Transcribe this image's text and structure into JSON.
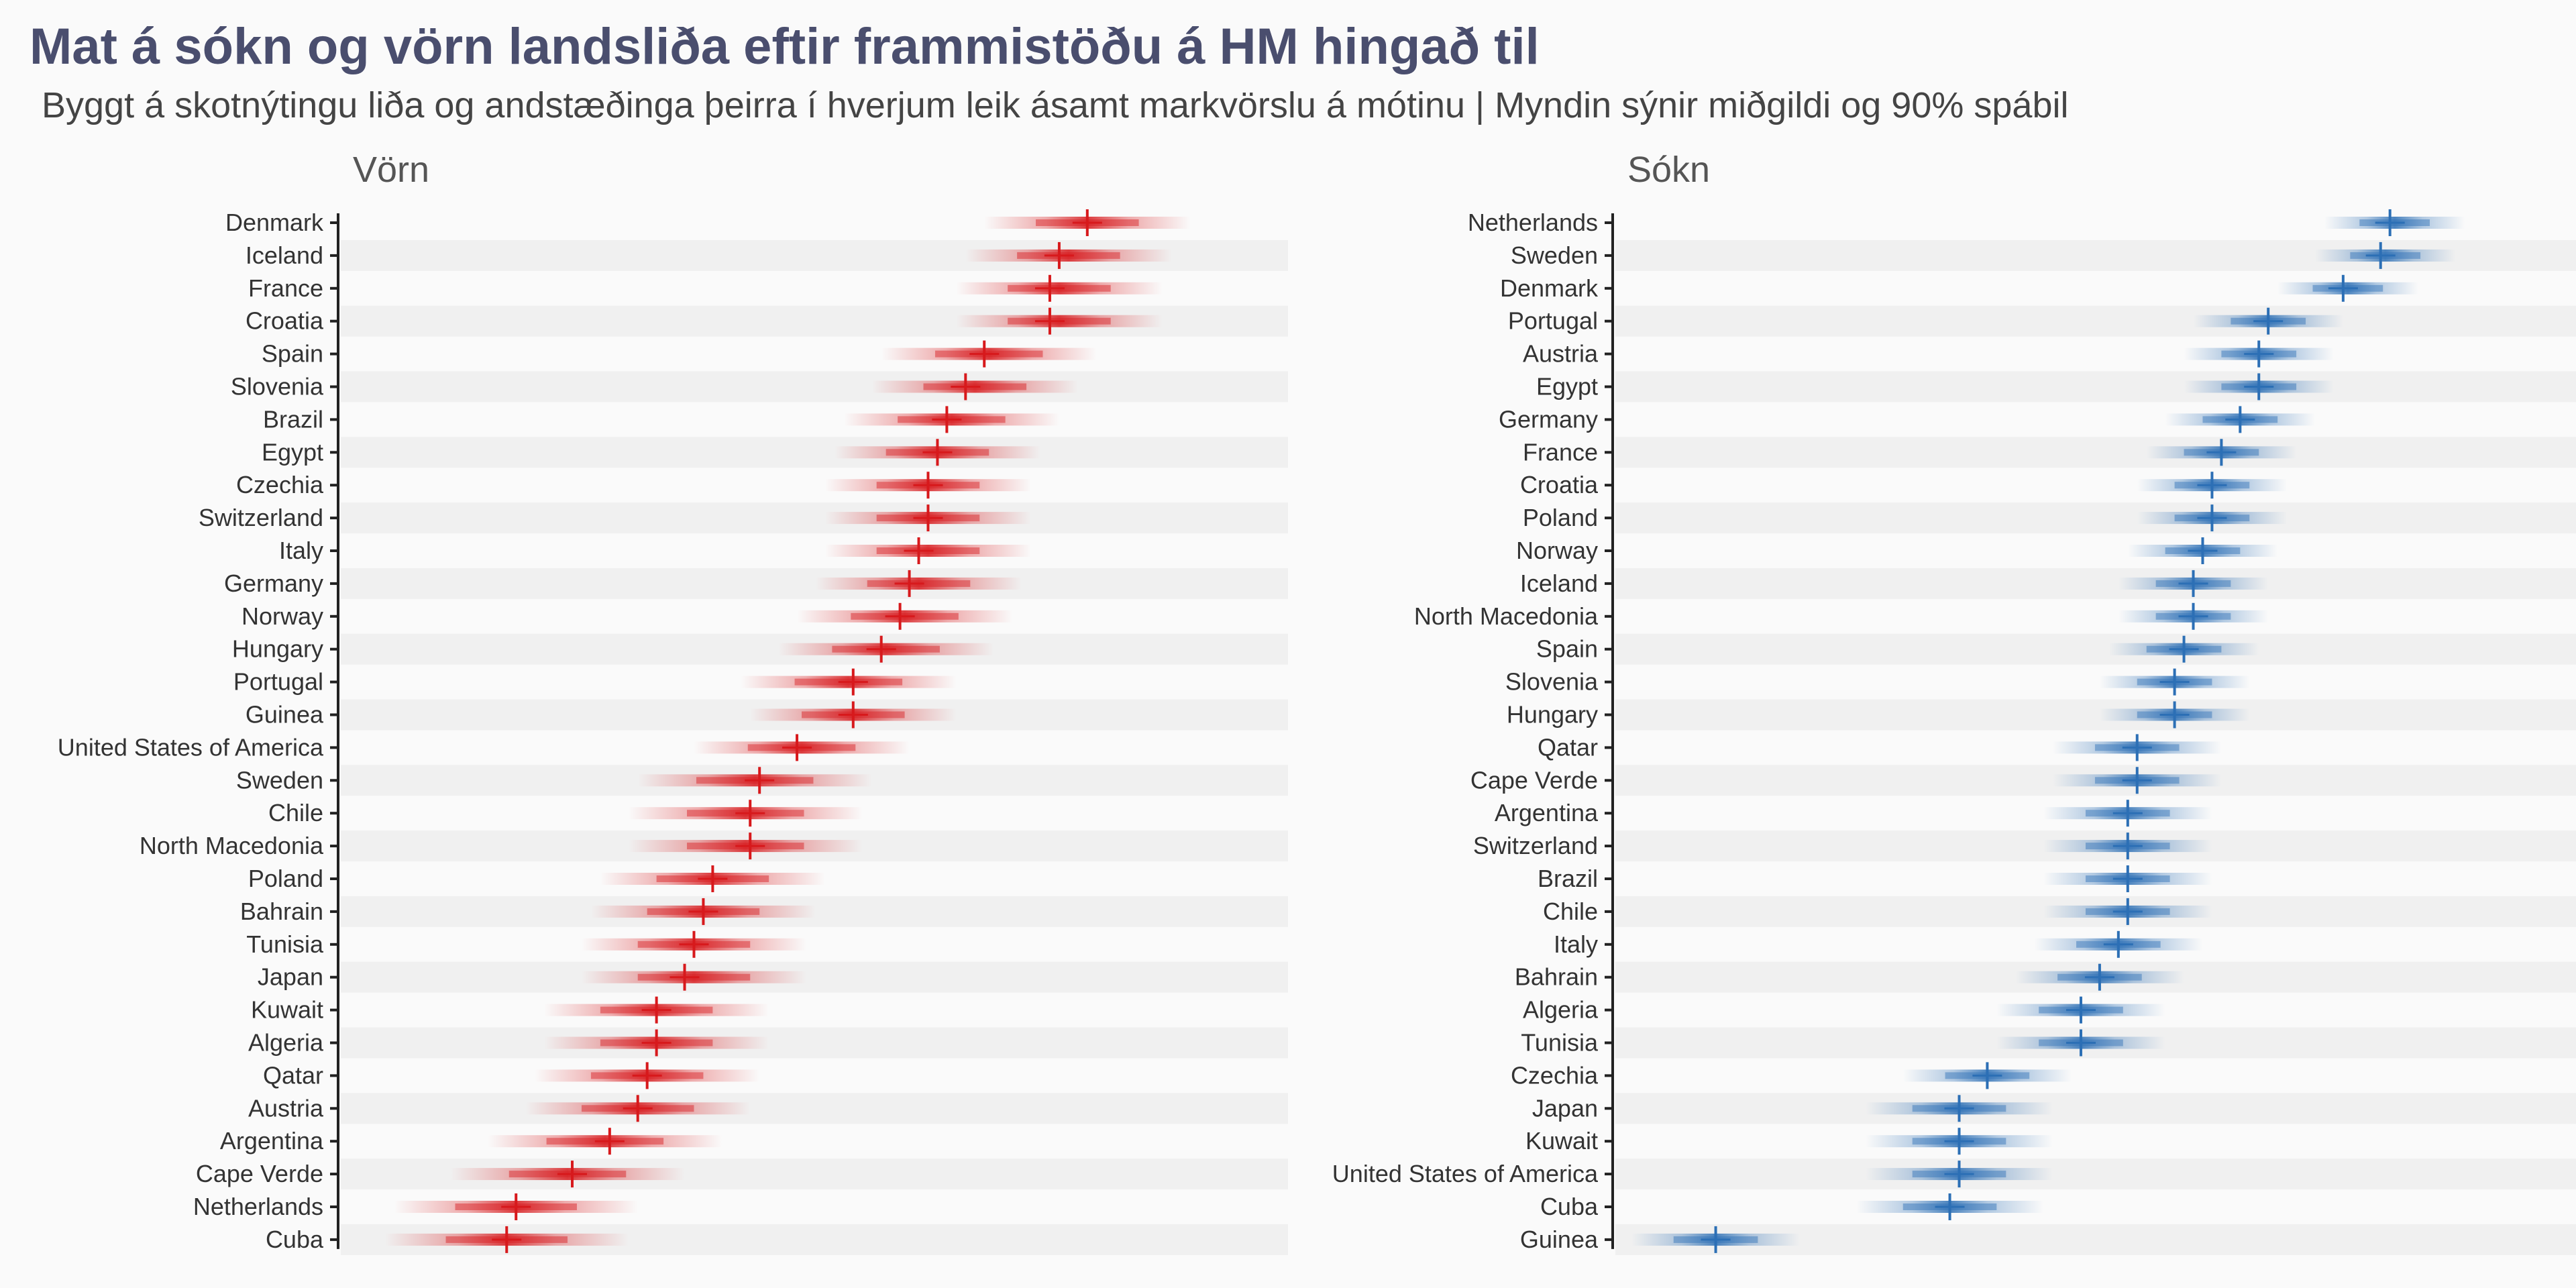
{
  "title": "Mat á sókn og vörn landsliða eftir frammistöðu á HM hingað til",
  "subtitle": "Byggt á skotnýtingu liða og andstæðinga þeirra í hverjum leik ásamt markvörslu á mótinu | Myndin sýnir miðgildi og 90% spábil",
  "colors": {
    "defense": "#d7191c",
    "attack": "#2c6fb5",
    "band": "#f0f0f0",
    "background": "#fafafa"
  },
  "chart_data": [
    {
      "type": "scatter",
      "panel": "Vörn",
      "title": "Vörn",
      "xlabel": "",
      "ylabel": "",
      "xlim": [
        0,
        1
      ],
      "grid": false,
      "categories": [
        "Denmark",
        "Iceland",
        "France",
        "Croatia",
        "Spain",
        "Slovenia",
        "Brazil",
        "Egypt",
        "Czechia",
        "Switzerland",
        "Italy",
        "Germany",
        "Norway",
        "Hungary",
        "Portugal",
        "Guinea",
        "United States of America",
        "Sweden",
        "Chile",
        "North Macedonia",
        "Poland",
        "Bahrain",
        "Tunisia",
        "Japan",
        "Kuwait",
        "Algeria",
        "Qatar",
        "Austria",
        "Argentina",
        "Cape Verde",
        "Netherlands",
        "Cuba"
      ],
      "median": [
        0.8,
        0.77,
        0.76,
        0.76,
        0.69,
        0.67,
        0.65,
        0.64,
        0.63,
        0.63,
        0.62,
        0.61,
        0.6,
        0.58,
        0.55,
        0.55,
        0.49,
        0.45,
        0.44,
        0.44,
        0.4,
        0.39,
        0.38,
        0.37,
        0.34,
        0.34,
        0.33,
        0.32,
        0.29,
        0.25,
        0.19,
        0.18
      ],
      "lower": [
        0.69,
        0.67,
        0.66,
        0.66,
        0.58,
        0.57,
        0.54,
        0.53,
        0.52,
        0.52,
        0.52,
        0.51,
        0.49,
        0.47,
        0.43,
        0.44,
        0.38,
        0.32,
        0.31,
        0.31,
        0.28,
        0.27,
        0.26,
        0.26,
        0.22,
        0.22,
        0.21,
        0.2,
        0.16,
        0.12,
        0.06,
        0.05
      ],
      "upper": [
        0.91,
        0.89,
        0.88,
        0.88,
        0.81,
        0.79,
        0.77,
        0.75,
        0.74,
        0.74,
        0.74,
        0.73,
        0.72,
        0.7,
        0.66,
        0.66,
        0.61,
        0.57,
        0.56,
        0.56,
        0.52,
        0.51,
        0.5,
        0.5,
        0.46,
        0.46,
        0.45,
        0.44,
        0.41,
        0.37,
        0.32,
        0.31
      ]
    },
    {
      "type": "scatter",
      "panel": "Sókn",
      "title": "Sókn",
      "xlabel": "",
      "ylabel": "",
      "xlim": [
        0,
        1
      ],
      "grid": false,
      "categories": [
        "Netherlands",
        "Sweden",
        "Denmark",
        "Portugal",
        "Austria",
        "Egypt",
        "Germany",
        "France",
        "Croatia",
        "Poland",
        "Norway",
        "Iceland",
        "North Macedonia",
        "Spain",
        "Slovenia",
        "Hungary",
        "Qatar",
        "Cape Verde",
        "Argentina",
        "Switzerland",
        "Brazil",
        "Chile",
        "Italy",
        "Bahrain",
        "Algeria",
        "Tunisia",
        "Czechia",
        "Japan",
        "Kuwait",
        "United States of America",
        "Cuba",
        "Guinea"
      ],
      "median": [
        0.83,
        0.82,
        0.78,
        0.7,
        0.69,
        0.69,
        0.67,
        0.65,
        0.64,
        0.64,
        0.63,
        0.62,
        0.62,
        0.61,
        0.6,
        0.6,
        0.56,
        0.56,
        0.55,
        0.55,
        0.55,
        0.55,
        0.54,
        0.52,
        0.5,
        0.5,
        0.4,
        0.37,
        0.37,
        0.37,
        0.36,
        0.11
      ],
      "lower": [
        0.76,
        0.75,
        0.71,
        0.62,
        0.61,
        0.61,
        0.59,
        0.57,
        0.56,
        0.56,
        0.55,
        0.54,
        0.54,
        0.53,
        0.52,
        0.52,
        0.47,
        0.47,
        0.46,
        0.46,
        0.46,
        0.46,
        0.45,
        0.43,
        0.41,
        0.41,
        0.31,
        0.27,
        0.27,
        0.27,
        0.26,
        0.02
      ],
      "upper": [
        0.91,
        0.9,
        0.86,
        0.78,
        0.77,
        0.77,
        0.75,
        0.73,
        0.72,
        0.72,
        0.71,
        0.7,
        0.7,
        0.69,
        0.68,
        0.68,
        0.65,
        0.65,
        0.64,
        0.64,
        0.64,
        0.64,
        0.63,
        0.61,
        0.59,
        0.59,
        0.49,
        0.47,
        0.47,
        0.47,
        0.46,
        0.2
      ]
    }
  ]
}
